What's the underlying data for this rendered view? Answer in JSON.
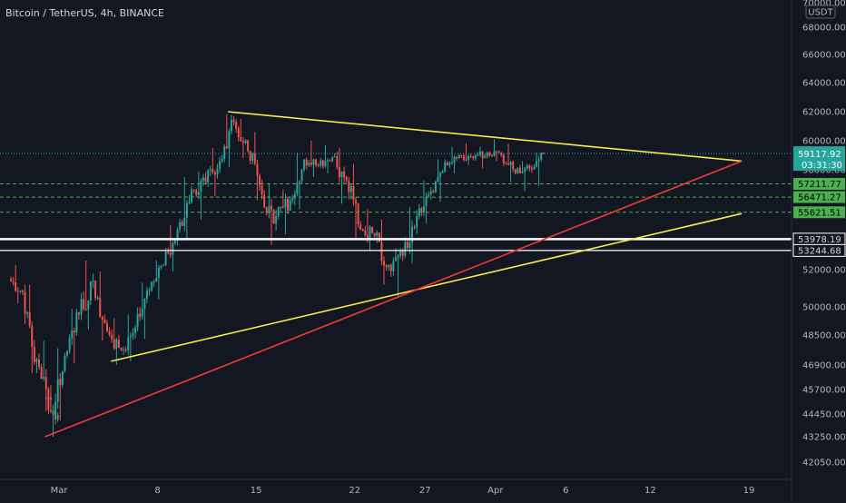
{
  "header": {
    "title": "Bitcoin / TetherUS, 4h, BINANCE"
  },
  "currency_badge": "USDT",
  "colors": {
    "background": "#131722",
    "up": "#26a69a",
    "down": "#ef5350",
    "yellow_line": "#f7e94b",
    "red_line": "#ef3b36",
    "dashed_green": "#4caf50",
    "white_line": "#ffffff",
    "axis_text": "#b2b5be"
  },
  "chart_data": {
    "type": "candlestick",
    "x_ticks": [
      {
        "label": "Mar",
        "day": 1
      },
      {
        "label": "8",
        "day": 8
      },
      {
        "label": "15",
        "day": 15
      },
      {
        "label": "22",
        "day": 22
      },
      {
        "label": "27",
        "day": 27
      },
      {
        "label": "Apr",
        "day": 32
      },
      {
        "label": "6",
        "day": 37
      },
      {
        "label": "12",
        "day": 43
      },
      {
        "label": "19",
        "day": 50
      }
    ],
    "y_ticks": [
      70000,
      68000,
      66000,
      64000,
      62000,
      60000,
      58000,
      52000,
      50000,
      48500,
      46900,
      45700,
      44450,
      43250,
      42050
    ],
    "y_tick_labels": [
      "70000.00",
      "68000.00",
      "66000.00",
      "64000.00",
      "62000.00",
      "60000.00",
      "58000.00",
      "52000.00",
      "50000.00",
      "48500.00",
      "46900.00",
      "45700.00",
      "44450.00",
      "43250.00",
      "42050.00"
    ],
    "x_range_days": [
      -2.2,
      53.6
    ],
    "candles_daily": [
      {
        "day": -2,
        "o": 51500,
        "h": 52300,
        "l": 50200,
        "c": 50800
      },
      {
        "day": -1,
        "o": 50800,
        "h": 51200,
        "l": 46500,
        "c": 47200
      },
      {
        "day": 0,
        "o": 47200,
        "h": 48200,
        "l": 44600,
        "c": 45300
      },
      {
        "day": 0.5,
        "o": 45300,
        "h": 45900,
        "l": 43250,
        "c": 44400
      },
      {
        "day": 1,
        "o": 44400,
        "h": 47800,
        "l": 44100,
        "c": 47400
      },
      {
        "day": 2,
        "o": 47400,
        "h": 49900,
        "l": 47000,
        "c": 49600
      },
      {
        "day": 3,
        "o": 49600,
        "h": 52600,
        "l": 48800,
        "c": 51400
      },
      {
        "day": 4,
        "o": 51400,
        "h": 51900,
        "l": 48200,
        "c": 48700
      },
      {
        "day": 5,
        "o": 48700,
        "h": 49400,
        "l": 46900,
        "c": 47700
      },
      {
        "day": 6,
        "o": 47700,
        "h": 49600,
        "l": 47100,
        "c": 48900
      },
      {
        "day": 7,
        "o": 48900,
        "h": 51300,
        "l": 48300,
        "c": 50900
      },
      {
        "day": 8,
        "o": 50900,
        "h": 52600,
        "l": 50400,
        "c": 52300
      },
      {
        "day": 9,
        "o": 52300,
        "h": 54900,
        "l": 51900,
        "c": 54600
      },
      {
        "day": 10,
        "o": 54600,
        "h": 57600,
        "l": 53900,
        "c": 56900
      },
      {
        "day": 11,
        "o": 56900,
        "h": 57900,
        "l": 55200,
        "c": 57300
      },
      {
        "day": 12,
        "o": 57300,
        "h": 59500,
        "l": 56500,
        "c": 58600
      },
      {
        "day": 13,
        "o": 58600,
        "h": 61850,
        "l": 58200,
        "c": 61300
      },
      {
        "day": 14,
        "o": 61300,
        "h": 61500,
        "l": 58800,
        "c": 59300
      },
      {
        "day": 15,
        "o": 59300,
        "h": 60600,
        "l": 56300,
        "c": 56600
      },
      {
        "day": 16,
        "o": 56600,
        "h": 57200,
        "l": 53600,
        "c": 55400
      },
      {
        "day": 17,
        "o": 55400,
        "h": 56900,
        "l": 54300,
        "c": 56300
      },
      {
        "day": 18,
        "o": 56300,
        "h": 59200,
        "l": 55800,
        "c": 58700
      },
      {
        "day": 19,
        "o": 58700,
        "h": 60000,
        "l": 57600,
        "c": 58300
      },
      {
        "day": 20,
        "o": 58300,
        "h": 59700,
        "l": 57800,
        "c": 58900
      },
      {
        "day": 21,
        "o": 58900,
        "h": 59500,
        "l": 56100,
        "c": 57400
      },
      {
        "day": 22,
        "o": 57400,
        "h": 58400,
        "l": 54000,
        "c": 54600
      },
      {
        "day": 23,
        "o": 54600,
        "h": 55800,
        "l": 53200,
        "c": 54200
      },
      {
        "day": 24,
        "o": 54200,
        "h": 55200,
        "l": 51200,
        "c": 52300
      },
      {
        "day": 25,
        "o": 52300,
        "h": 53400,
        "l": 50500,
        "c": 52900
      },
      {
        "day": 26,
        "o": 52900,
        "h": 55900,
        "l": 52400,
        "c": 55400
      },
      {
        "day": 27,
        "o": 55400,
        "h": 57400,
        "l": 55000,
        "c": 56800
      },
      {
        "day": 28,
        "o": 56800,
        "h": 58700,
        "l": 56200,
        "c": 58500
      },
      {
        "day": 29,
        "o": 58500,
        "h": 59600,
        "l": 57800,
        "c": 59000
      },
      {
        "day": 30,
        "o": 59000,
        "h": 59800,
        "l": 58300,
        "c": 58800
      },
      {
        "day": 31,
        "o": 58800,
        "h": 59600,
        "l": 58100,
        "c": 59200
      },
      {
        "day": 32,
        "o": 59200,
        "h": 60100,
        "l": 58600,
        "c": 59000
      },
      {
        "day": 33,
        "o": 59000,
        "h": 59800,
        "l": 57300,
        "c": 57800
      },
      {
        "day": 34,
        "o": 57800,
        "h": 58600,
        "l": 56800,
        "c": 58100
      },
      {
        "day": 35,
        "o": 58100,
        "h": 59200,
        "l": 57100,
        "c": 59117.92
      }
    ],
    "trendlines": [
      {
        "name": "yellow-upper",
        "color": "yellow_line",
        "x1": 13,
        "y1": 62000,
        "x2": 49.5,
        "y2": 58600
      },
      {
        "name": "yellow-lower",
        "color": "yellow_line",
        "x1": 4.7,
        "y1": 47100,
        "x2": 49.5,
        "y2": 55550
      },
      {
        "name": "red-support",
        "color": "red_line",
        "x1": 0,
        "y1": 43250,
        "x2": 49.5,
        "y2": 58600
      }
    ],
    "horizontal_levels": [
      {
        "price": 57211.77,
        "label": "57211.77",
        "style": "dashed",
        "tag": "green"
      },
      {
        "price": 56471.27,
        "label": "56471.27",
        "style": "dashed",
        "tag": "green"
      },
      {
        "price": 55621.51,
        "label": "55621.51",
        "style": "dashed",
        "tag": "green"
      },
      {
        "price": 53978.19,
        "label": "53978.19",
        "style": "solid-thick",
        "tag": "white"
      },
      {
        "price": 53244.68,
        "label": "53244.68",
        "style": "solid-thin",
        "tag": "white"
      }
    ],
    "last_price": {
      "price": 59117.92,
      "label": "59117.92",
      "countdown": "03:31:30"
    }
  }
}
